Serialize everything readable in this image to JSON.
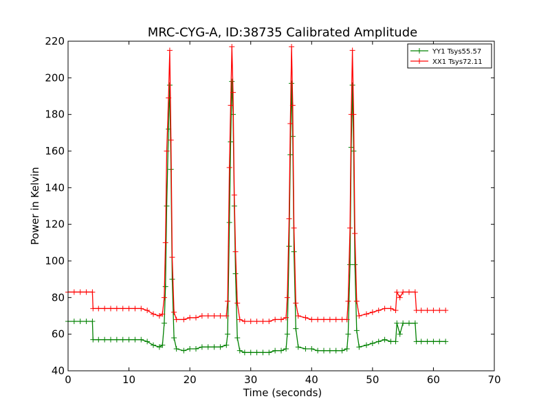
{
  "chart_data": {
    "type": "line",
    "title": "MRC-CYG-A, ID:38735 Calibrated Amplitude",
    "xlabel": "Time (seconds)",
    "ylabel": "Power in Kelvin",
    "xlim": [
      0,
      70
    ],
    "ylim": [
      40,
      220
    ],
    "xticks": [
      0,
      10,
      20,
      30,
      40,
      50,
      60,
      70
    ],
    "yticks": [
      40,
      60,
      80,
      100,
      120,
      140,
      160,
      180,
      200,
      220
    ],
    "grid": false,
    "legend_position": "top-right",
    "marker": "+",
    "series": [
      {
        "name": "YY1 Tsys55.57",
        "color": "#008000",
        "points": [
          [
            0,
            67
          ],
          [
            1,
            67
          ],
          [
            2,
            67
          ],
          [
            3,
            67
          ],
          [
            4,
            67
          ],
          [
            4.1,
            57
          ],
          [
            5,
            57
          ],
          [
            6,
            57
          ],
          [
            7,
            57
          ],
          [
            8,
            57
          ],
          [
            9,
            57
          ],
          [
            10,
            57
          ],
          [
            11,
            57
          ],
          [
            12,
            57
          ],
          [
            13,
            56
          ],
          [
            14,
            54
          ],
          [
            15,
            53
          ],
          [
            15.5,
            54
          ],
          [
            15.8,
            66
          ],
          [
            16,
            86
          ],
          [
            16.2,
            130
          ],
          [
            16.5,
            172
          ],
          [
            16.7,
            196
          ],
          [
            16.9,
            150
          ],
          [
            17.1,
            90
          ],
          [
            17.4,
            58
          ],
          [
            17.8,
            52
          ],
          [
            19,
            51
          ],
          [
            20,
            52
          ],
          [
            21,
            52
          ],
          [
            22,
            53
          ],
          [
            23,
            53
          ],
          [
            24,
            53
          ],
          [
            25,
            53
          ],
          [
            26,
            54
          ],
          [
            26.2,
            60
          ],
          [
            26.5,
            121
          ],
          [
            26.7,
            165
          ],
          [
            26.9,
            198
          ],
          [
            27.1,
            180
          ],
          [
            27.3,
            130
          ],
          [
            27.5,
            93
          ],
          [
            27.8,
            58
          ],
          [
            28.2,
            51
          ],
          [
            29,
            50
          ],
          [
            30,
            50
          ],
          [
            31,
            50
          ],
          [
            32,
            50
          ],
          [
            33,
            50
          ],
          [
            34,
            51
          ],
          [
            35,
            51
          ],
          [
            35.8,
            52
          ],
          [
            36,
            60
          ],
          [
            36.3,
            108
          ],
          [
            36.5,
            158
          ],
          [
            36.7,
            197
          ],
          [
            36.9,
            168
          ],
          [
            37.1,
            105
          ],
          [
            37.4,
            63
          ],
          [
            37.8,
            53
          ],
          [
            39,
            52
          ],
          [
            40,
            52
          ],
          [
            41,
            51
          ],
          [
            42,
            51
          ],
          [
            43,
            51
          ],
          [
            44,
            51
          ],
          [
            45,
            51
          ],
          [
            45.8,
            52
          ],
          [
            46,
            60
          ],
          [
            46.3,
            98
          ],
          [
            46.5,
            162
          ],
          [
            46.7,
            196
          ],
          [
            46.9,
            160
          ],
          [
            47.1,
            98
          ],
          [
            47.4,
            62
          ],
          [
            47.8,
            53
          ],
          [
            49,
            54
          ],
          [
            50,
            55
          ],
          [
            51,
            56
          ],
          [
            52,
            57
          ],
          [
            53,
            56
          ],
          [
            53.8,
            56
          ],
          [
            54,
            66
          ],
          [
            54.5,
            60
          ],
          [
            55,
            66
          ],
          [
            56,
            66
          ],
          [
            57,
            66
          ],
          [
            57.2,
            56
          ],
          [
            58,
            56
          ],
          [
            59,
            56
          ],
          [
            60,
            56
          ],
          [
            61,
            56
          ],
          [
            62,
            56
          ]
        ]
      },
      {
        "name": "XX1 Tsys72.11",
        "color": "#ff0000",
        "points": [
          [
            0,
            83
          ],
          [
            1,
            83
          ],
          [
            2,
            83
          ],
          [
            3,
            83
          ],
          [
            4,
            83
          ],
          [
            4.1,
            74
          ],
          [
            5,
            74
          ],
          [
            6,
            74
          ],
          [
            7,
            74
          ],
          [
            8,
            74
          ],
          [
            9,
            74
          ],
          [
            10,
            74
          ],
          [
            11,
            74
          ],
          [
            12,
            74
          ],
          [
            13,
            73
          ],
          [
            14,
            71
          ],
          [
            15,
            70
          ],
          [
            15.5,
            71
          ],
          [
            15.8,
            80
          ],
          [
            16,
            110
          ],
          [
            16.2,
            160
          ],
          [
            16.5,
            189
          ],
          [
            16.7,
            215
          ],
          [
            16.9,
            166
          ],
          [
            17.1,
            102
          ],
          [
            17.4,
            72
          ],
          [
            17.8,
            68
          ],
          [
            19,
            68
          ],
          [
            20,
            69
          ],
          [
            21,
            69
          ],
          [
            22,
            70
          ],
          [
            23,
            70
          ],
          [
            24,
            70
          ],
          [
            25,
            70
          ],
          [
            26,
            70
          ],
          [
            26.2,
            78
          ],
          [
            26.5,
            151
          ],
          [
            26.7,
            185
          ],
          [
            26.9,
            217
          ],
          [
            27.1,
            192
          ],
          [
            27.3,
            136
          ],
          [
            27.5,
            105
          ],
          [
            27.8,
            77
          ],
          [
            28.2,
            68
          ],
          [
            29,
            67
          ],
          [
            30,
            67
          ],
          [
            31,
            67
          ],
          [
            32,
            67
          ],
          [
            33,
            67
          ],
          [
            34,
            68
          ],
          [
            35,
            68
          ],
          [
            35.8,
            69
          ],
          [
            36,
            80
          ],
          [
            36.3,
            123
          ],
          [
            36.5,
            175
          ],
          [
            36.7,
            217
          ],
          [
            36.9,
            185
          ],
          [
            37.1,
            118
          ],
          [
            37.4,
            77
          ],
          [
            37.8,
            70
          ],
          [
            39,
            69
          ],
          [
            40,
            68
          ],
          [
            41,
            68
          ],
          [
            42,
            68
          ],
          [
            43,
            68
          ],
          [
            44,
            68
          ],
          [
            45,
            68
          ],
          [
            45.8,
            68
          ],
          [
            46,
            78
          ],
          [
            46.3,
            118
          ],
          [
            46.5,
            180
          ],
          [
            46.7,
            215
          ],
          [
            46.9,
            180
          ],
          [
            47.1,
            115
          ],
          [
            47.4,
            78
          ],
          [
            47.8,
            70
          ],
          [
            49,
            71
          ],
          [
            50,
            72
          ],
          [
            51,
            73
          ],
          [
            52,
            74
          ],
          [
            53,
            74
          ],
          [
            53.8,
            73
          ],
          [
            54,
            83
          ],
          [
            54.5,
            80
          ],
          [
            55,
            83
          ],
          [
            56,
            83
          ],
          [
            57,
            83
          ],
          [
            57.2,
            73
          ],
          [
            58,
            73
          ],
          [
            59,
            73
          ],
          [
            60,
            73
          ],
          [
            61,
            73
          ],
          [
            62,
            73
          ]
        ]
      }
    ]
  }
}
